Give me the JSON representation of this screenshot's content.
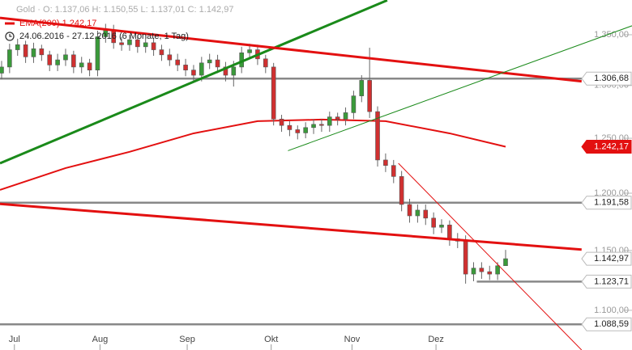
{
  "chart_data": {
    "type": "candlestick",
    "header": {
      "quote": "Gold · O: 1.137,06  H: 1.150,55  L: 1.137,01  C: 1.142,97",
      "indicator": "EMA(200)  1.242,17",
      "period": "24.06.2016 - 27.12.2016  (6 Monate, 1 Tag)"
    },
    "log_scale": true,
    "xlim": [
      -0.2,
      78.8
    ],
    "ylim": [
      1068,
      1385.3
    ],
    "yticks": [
      {
        "value": 1350,
        "label": "1.350,00"
      },
      {
        "value": 1300,
        "label": "1.300,00"
      },
      {
        "value": 1250,
        "label": "1.250,00"
      },
      {
        "value": 1200,
        "label": "1.200,00"
      },
      {
        "value": 1150,
        "label": "1.150,00"
      },
      {
        "value": 1100,
        "label": "1.100,00"
      }
    ],
    "xticks": [
      {
        "value": 1.6,
        "label": "Jul"
      },
      {
        "value": 12.3,
        "label": "Aug"
      },
      {
        "value": 23.2,
        "label": "Sep"
      },
      {
        "value": 33.7,
        "label": "Okt"
      },
      {
        "value": 43.8,
        "label": "Nov"
      },
      {
        "value": 54.3,
        "label": "Dez"
      }
    ],
    "up_color": "#3a9a3a",
    "down_color": "#d03030",
    "candles": {
      "open": [
        1312,
        1318,
        1335,
        1340,
        1328,
        1336,
        1330,
        1320,
        1325,
        1330,
        1318,
        1322,
        1315,
        1348,
        1355,
        1342,
        1340,
        1345,
        1338,
        1342,
        1335,
        1330,
        1325,
        1320,
        1315,
        1310,
        1322,
        1325,
        1318,
        1310,
        1318,
        1332,
        1335,
        1326,
        1318,
        1268,
        1262,
        1258,
        1255,
        1260,
        1263,
        1262,
        1270,
        1268,
        1274,
        1290,
        1305,
        1275,
        1230,
        1225,
        1215,
        1190,
        1180,
        1185,
        1178,
        1170,
        1172,
        1160,
        1158,
        1130,
        1135,
        1132,
        1130,
        1137.06
      ],
      "high": [
        1324,
        1341,
        1346,
        1344,
        1342,
        1340,
        1334,
        1331,
        1336,
        1334,
        1328,
        1326,
        1354,
        1361,
        1360,
        1348,
        1350,
        1349,
        1346,
        1347,
        1340,
        1336,
        1331,
        1326,
        1320,
        1328,
        1331,
        1330,
        1323,
        1324,
        1338,
        1341,
        1340,
        1330,
        1322,
        1272,
        1266,
        1262,
        1265,
        1268,
        1268,
        1275,
        1274,
        1279,
        1295,
        1310,
        1337,
        1280,
        1236,
        1230,
        1220,
        1195,
        1190,
        1190,
        1183,
        1177,
        1176,
        1165,
        1163,
        1140,
        1140,
        1137,
        1140,
        1150.55
      ],
      "low": [
        1306,
        1312,
        1329,
        1322,
        1322,
        1324,
        1314,
        1314,
        1319,
        1312,
        1312,
        1309,
        1309,
        1342,
        1336,
        1334,
        1334,
        1332,
        1332,
        1329,
        1324,
        1319,
        1314,
        1309,
        1304,
        1304,
        1316,
        1312,
        1304,
        1299,
        1312,
        1326,
        1320,
        1312,
        1262,
        1256,
        1252,
        1249,
        1250,
        1254,
        1256,
        1256,
        1262,
        1262,
        1268,
        1284,
        1269,
        1224,
        1219,
        1209,
        1184,
        1174,
        1174,
        1172,
        1164,
        1165,
        1154,
        1152,
        1122,
        1124,
        1126,
        1125,
        1125,
        1137.01
      ],
      "close": [
        1318,
        1335,
        1340,
        1328,
        1336,
        1330,
        1320,
        1325,
        1330,
        1318,
        1322,
        1315,
        1348,
        1355,
        1342,
        1340,
        1345,
        1338,
        1342,
        1335,
        1330,
        1325,
        1320,
        1315,
        1310,
        1322,
        1325,
        1318,
        1310,
        1318,
        1332,
        1335,
        1326,
        1318,
        1268,
        1262,
        1258,
        1255,
        1260,
        1263,
        1262,
        1270,
        1268,
        1274,
        1290,
        1305,
        1275,
        1230,
        1225,
        1215,
        1190,
        1180,
        1185,
        1178,
        1170,
        1172,
        1160,
        1158,
        1130,
        1135,
        1132,
        1130,
        1137,
        1142.97
      ]
    },
    "ema": {
      "name": "EMA(200)",
      "color": "#e31010",
      "x": [
        -0.2,
        8,
        16,
        24,
        32,
        40,
        48,
        56,
        63
      ],
      "values": [
        1203,
        1222.6,
        1237.5,
        1254.6,
        1266,
        1267.5,
        1266,
        1254.6,
        1242.17
      ]
    },
    "trendlines": [
      {
        "color": "#1a8a1a",
        "width": 3,
        "x": [
          -0.2,
          48.2
        ],
        "y": [
          1227,
          1385
        ]
      },
      {
        "color": "#e31010",
        "width": 3,
        "x": [
          -0.2,
          72.5
        ],
        "y": [
          1367,
          1304
        ]
      },
      {
        "color": "#e31010",
        "width": 3,
        "x": [
          -0.2,
          72.5
        ],
        "y": [
          1190.5,
          1150.8
        ]
      },
      {
        "color": "#1a8a1a",
        "width": 1,
        "x": [
          35.8,
          78.8
        ],
        "y": [
          1238.5,
          1359
        ]
      },
      {
        "color": "#e31010",
        "width": 1,
        "x": [
          49.6,
          72.5
        ],
        "y": [
          1227,
          1068
        ]
      }
    ],
    "levels": [
      {
        "value": 1306.68,
        "label": "1.306,68",
        "kind": "line",
        "color": "#888888"
      },
      {
        "value": 1191.58,
        "label": "1.191,58",
        "kind": "line",
        "color": "#888888"
      },
      {
        "value": 1088.59,
        "label": "1.088,59",
        "kind": "line",
        "color": "#888888"
      },
      {
        "value": 1123.71,
        "label": "1.123,71",
        "kind": "line",
        "color": "#888888",
        "x_start": 59.4
      },
      {
        "value": 1142.97,
        "label": "1.142,97",
        "kind": "price",
        "color": "#888888"
      },
      {
        "value": 1242.17,
        "label": "1.242,17",
        "kind": "ema",
        "color": "#e31010"
      }
    ]
  }
}
